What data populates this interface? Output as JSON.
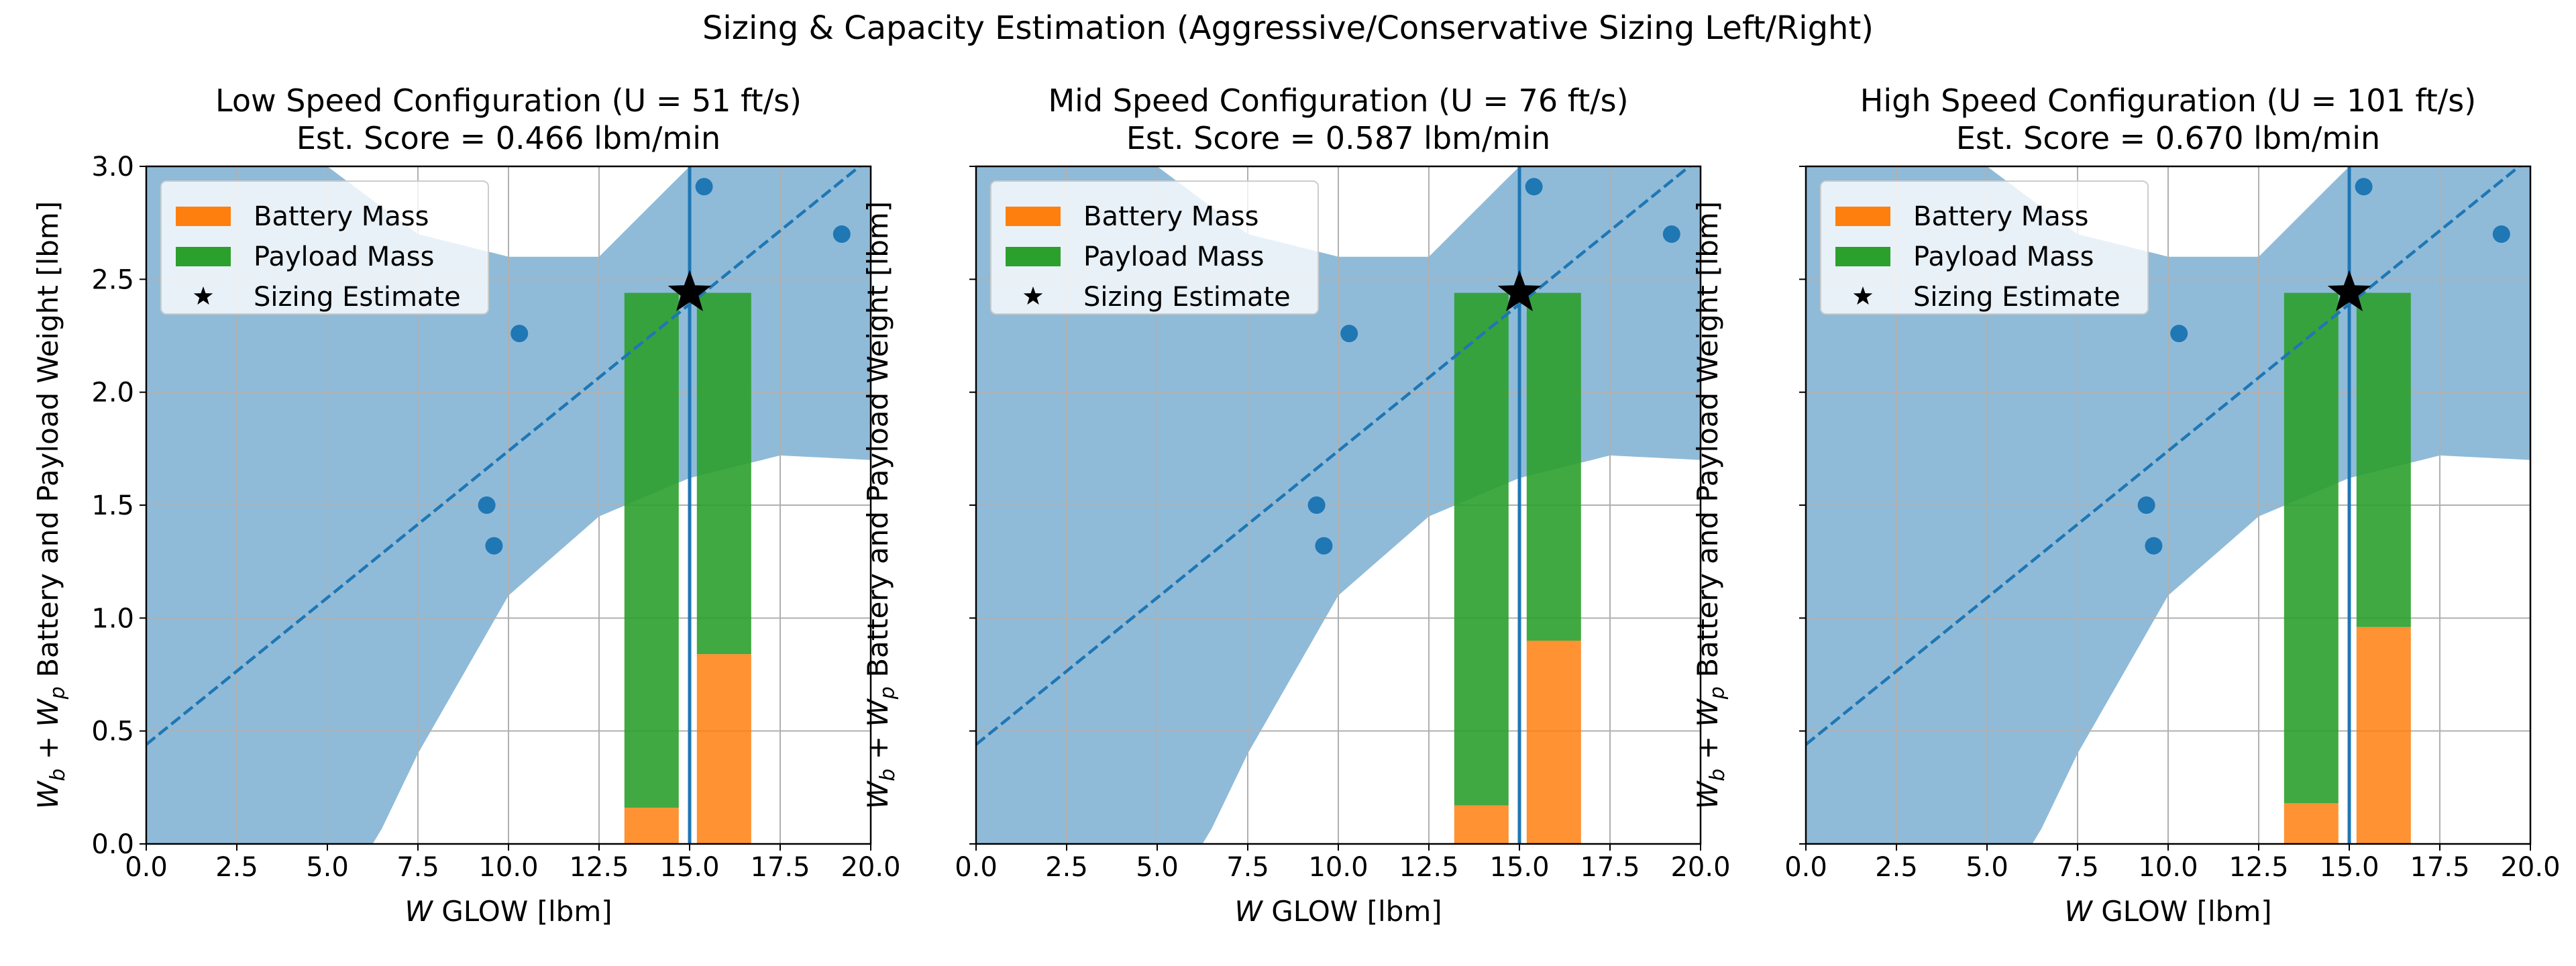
{
  "figure": {
    "title": "Sizing & Capacity Estimation (Aggressive/Conservative Sizing Left/Right)"
  },
  "colors": {
    "band": "#1f77b4",
    "battery": "#ff7f0e",
    "payload": "#2ca02c",
    "grid": "#b0b0b0"
  },
  "chart_data": [
    {
      "type": "bar",
      "title": "Low Speed Configuration (U = 51 ft/s)",
      "subtitle": "Est. Score = 0.466 lbm/min",
      "xlabel": "W GLOW [lbm]",
      "ylabel": "Wb + Wp Battery and Payload Weight [lbm]",
      "xlim": [
        0,
        20
      ],
      "ylim": [
        0,
        3.0
      ],
      "xticks": [
        "0.0",
        "2.5",
        "5.0",
        "7.5",
        "10.0",
        "12.5",
        "15.0",
        "17.5",
        "20.0"
      ],
      "yticks": [
        "0.0",
        "0.5",
        "1.0",
        "1.5",
        "2.0",
        "2.5",
        "3.0"
      ],
      "grid": true,
      "legend_position": "top-left",
      "legend": [
        "Battery Mass",
        "Payload Mass",
        "Sizing Estimate"
      ],
      "scatter": {
        "x": [
          9.4,
          9.6,
          10.3,
          15.4,
          19.2
        ],
        "y": [
          1.5,
          1.32,
          2.26,
          2.91,
          2.7
        ]
      },
      "fit_line": {
        "x": [
          0,
          20
        ],
        "y": [
          0.44,
          3.04
        ]
      },
      "band_upper": {
        "x": [
          0,
          2.5,
          5,
          7.5,
          10,
          12.5,
          15,
          17.5,
          20
        ],
        "y": [
          3.0,
          3.0,
          3.0,
          2.7,
          2.6,
          2.6,
          3.0,
          3.0,
          3.0
        ]
      },
      "band_lower": {
        "x": [
          0,
          6.3,
          7.5,
          10,
          12.5,
          15,
          17.5,
          20
        ],
        "y": [
          0,
          0,
          0.4,
          1.1,
          1.45,
          1.62,
          1.72,
          1.7
        ]
      },
      "vline_x": 15.0,
      "sizing_estimate": {
        "x": 15.0,
        "y": 2.44
      },
      "bars": [
        {
          "x_left": 13.2,
          "x_right": 14.7,
          "battery": 0.16,
          "total": 2.44
        },
        {
          "x_left": 15.2,
          "x_right": 16.7,
          "battery": 0.84,
          "total": 2.44
        }
      ]
    },
    {
      "type": "bar",
      "title": "Mid Speed Configuration (U = 76 ft/s)",
      "subtitle": "Est. Score = 0.587 lbm/min",
      "xlabel": "W GLOW [lbm]",
      "ylabel": "Wb + Wp Battery and Payload Weight [lbm]",
      "xlim": [
        0,
        20
      ],
      "ylim": [
        0,
        3.0
      ],
      "xticks": [
        "0.0",
        "2.5",
        "5.0",
        "7.5",
        "10.0",
        "12.5",
        "15.0",
        "17.5",
        "20.0"
      ],
      "yticks": [
        "0.0",
        "0.5",
        "1.0",
        "1.5",
        "2.0",
        "2.5",
        "3.0"
      ],
      "grid": true,
      "legend_position": "top-left",
      "legend": [
        "Battery Mass",
        "Payload Mass",
        "Sizing Estimate"
      ],
      "scatter": {
        "x": [
          9.4,
          9.6,
          10.3,
          15.4,
          19.2
        ],
        "y": [
          1.5,
          1.32,
          2.26,
          2.91,
          2.7
        ]
      },
      "fit_line": {
        "x": [
          0,
          20
        ],
        "y": [
          0.44,
          3.04
        ]
      },
      "band_upper": {
        "x": [
          0,
          2.5,
          5,
          7.5,
          10,
          12.5,
          15,
          17.5,
          20
        ],
        "y": [
          3.0,
          3.0,
          3.0,
          2.7,
          2.6,
          2.6,
          3.0,
          3.0,
          3.0
        ]
      },
      "band_lower": {
        "x": [
          0,
          6.3,
          7.5,
          10,
          12.5,
          15,
          17.5,
          20
        ],
        "y": [
          0,
          0,
          0.4,
          1.1,
          1.45,
          1.62,
          1.72,
          1.7
        ]
      },
      "vline_x": 15.0,
      "sizing_estimate": {
        "x": 15.0,
        "y": 2.44
      },
      "bars": [
        {
          "x_left": 13.2,
          "x_right": 14.7,
          "battery": 0.17,
          "total": 2.44
        },
        {
          "x_left": 15.2,
          "x_right": 16.7,
          "battery": 0.9,
          "total": 2.44
        }
      ]
    },
    {
      "type": "bar",
      "title": "High Speed Configuration (U = 101 ft/s)",
      "subtitle": "Est. Score = 0.670 lbm/min",
      "xlabel": "W GLOW [lbm]",
      "ylabel": "Wb + Wp Battery and Payload Weight [lbm]",
      "xlim": [
        0,
        20
      ],
      "ylim": [
        0,
        3.0
      ],
      "xticks": [
        "0.0",
        "2.5",
        "5.0",
        "7.5",
        "10.0",
        "12.5",
        "15.0",
        "17.5",
        "20.0"
      ],
      "yticks": [
        "0.0",
        "0.5",
        "1.0",
        "1.5",
        "2.0",
        "2.5",
        "3.0"
      ],
      "grid": true,
      "legend_position": "top-left",
      "legend": [
        "Battery Mass",
        "Payload Mass",
        "Sizing Estimate"
      ],
      "scatter": {
        "x": [
          9.4,
          9.6,
          10.3,
          15.4,
          19.2
        ],
        "y": [
          1.5,
          1.32,
          2.26,
          2.91,
          2.7
        ]
      },
      "fit_line": {
        "x": [
          0,
          20
        ],
        "y": [
          0.44,
          3.04
        ]
      },
      "band_upper": {
        "x": [
          0,
          2.5,
          5,
          7.5,
          10,
          12.5,
          15,
          17.5,
          20
        ],
        "y": [
          3.0,
          3.0,
          3.0,
          2.7,
          2.6,
          2.6,
          3.0,
          3.0,
          3.0
        ]
      },
      "band_lower": {
        "x": [
          0,
          6.3,
          7.5,
          10,
          12.5,
          15,
          17.5,
          20
        ],
        "y": [
          0,
          0,
          0.4,
          1.1,
          1.45,
          1.62,
          1.72,
          1.7
        ]
      },
      "vline_x": 15.0,
      "sizing_estimate": {
        "x": 15.0,
        "y": 2.44
      },
      "bars": [
        {
          "x_left": 13.2,
          "x_right": 14.7,
          "battery": 0.18,
          "total": 2.44
        },
        {
          "x_left": 15.2,
          "x_right": 16.7,
          "battery": 0.96,
          "total": 2.44
        }
      ]
    }
  ]
}
